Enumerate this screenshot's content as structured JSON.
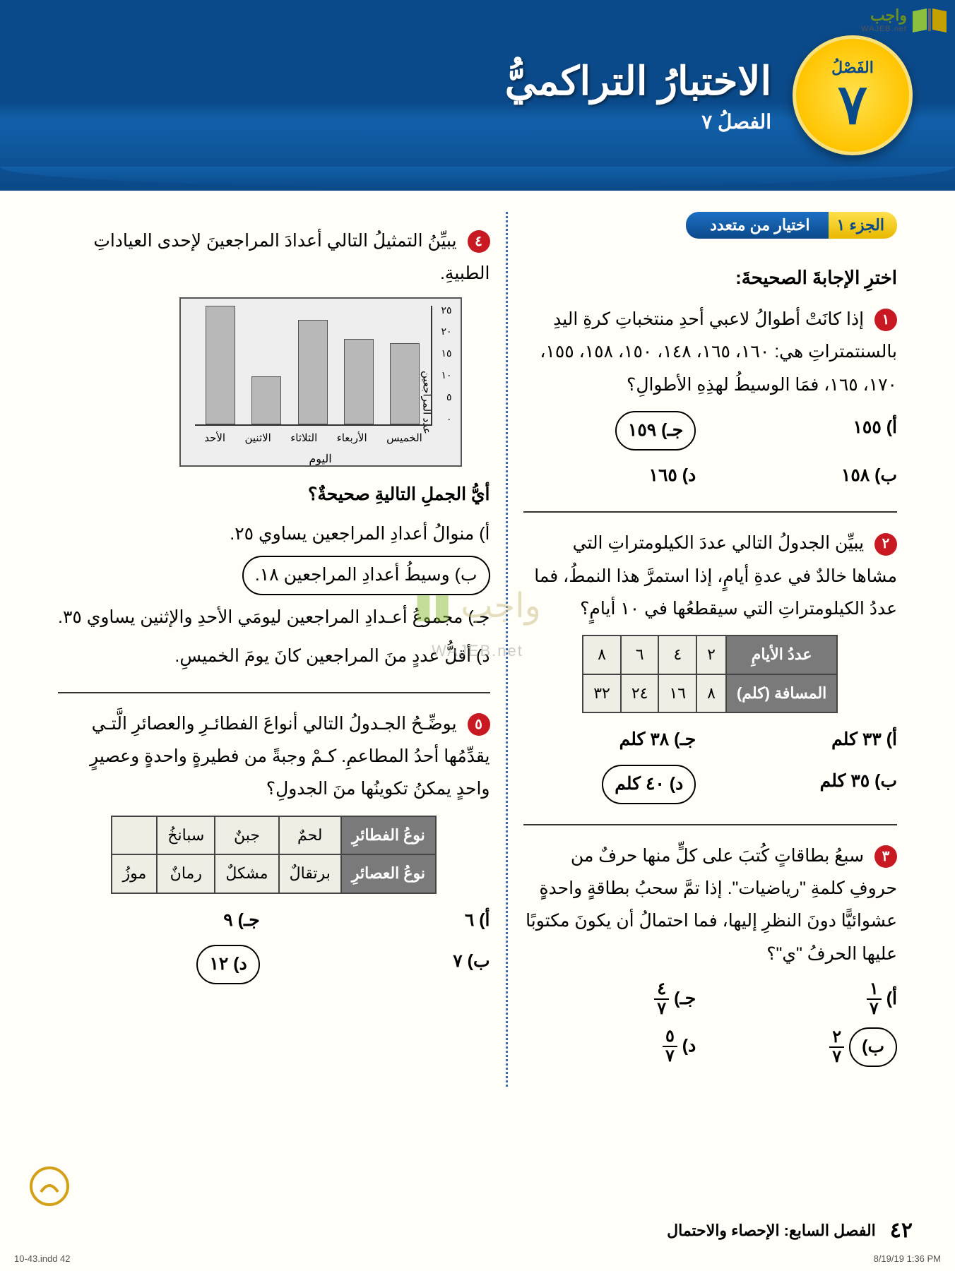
{
  "logo": {
    "brand": "واجب",
    "sub": "WAJEB.net"
  },
  "header": {
    "chapter_label": "الفَصْلُ",
    "chapter_number": "٧",
    "title": "الاختبارُ التراكميُّ",
    "subtitle": "الفصلُ ٧"
  },
  "section_pill": {
    "part": "الجزء ١",
    "label": "اختيار من متعدد"
  },
  "instruction": "اخترِ الإجابةَ الصحيحةَ:",
  "colors": {
    "header_bg": "#0b4a8a",
    "badge_bg": "#ffc400",
    "qnum_bg": "#c81922",
    "pill_blue": "#0b4a8a",
    "table_header": "#7a7a7a",
    "bar_fill": "#b8b8b8",
    "chart_bg": "#eeeeee"
  },
  "q1": {
    "num": "١",
    "text": "إذا كانَتْ أطوالُ لاعبي أحدِ منتخباتِ كرةِ اليدِ بالسنتمتراتِ هي: ١٦٠، ١٦٥، ١٤٨، ١٥٠، ١٥٨، ١٥٥، ١٧٠، ١٦٥، فمَا الوسيطُ لهذِهِ الأطوالِ؟",
    "options": {
      "a": "أ) ١٥٥",
      "b": "ب) ١٥٨",
      "c": "جـ) ١٥٩",
      "d": "د) ١٦٥"
    },
    "correct": "c"
  },
  "q2": {
    "num": "٢",
    "text": "يبيِّن الجدولُ التالي عددَ الكيلومتراتِ التي مشاها خالدٌ في عدةِ أيامٍ، إذا استمرَّ هذا النمطُ، فما عددُ الكيلومتراتِ التي سيقطعُها في ١٠ أيامٍ؟",
    "table": {
      "row1_header": "عددُ الأيامِ",
      "row1": [
        "٢",
        "٤",
        "٦",
        "٨"
      ],
      "row2_header": "المسافة (كلم)",
      "row2": [
        "٨",
        "١٦",
        "٢٤",
        "٣٢"
      ]
    },
    "options": {
      "a": "أ) ٣٣ كلم",
      "b": "ب) ٣٥ كلم",
      "c": "جـ) ٣٨ كلم",
      "d": "د) ٤٠ كلم"
    },
    "correct": "d"
  },
  "q3": {
    "num": "٣",
    "text": "سبعُ بطاقاتٍ كُتبَ على كلٍّ منها حرفٌ من حروفِ كلمةِ \"رياضيات\". إذا تمَّ سحبُ بطاقةٍ واحدةٍ عشوائيًّا دونَ النظرِ إليها، فما احتمالُ أن يكونَ مكتوبًا عليها الحرفُ \"ي\"؟",
    "options": {
      "a_label": "أ)",
      "a_num": "١",
      "a_den": "٧",
      "b_label": "ب)",
      "b_num": "٢",
      "b_den": "٧",
      "c_label": "جـ)",
      "c_num": "٤",
      "c_den": "٧",
      "d_label": "د)",
      "d_num": "٥",
      "d_den": "٧"
    },
    "correct": "b"
  },
  "q4": {
    "num": "٤",
    "text": "يبيِّنُ التمثيلُ التالي أعدادَ المراجعينَ لإحدى العياداتِ الطبيةِ.",
    "chart": {
      "ylabel": "عدد المراجعين",
      "xlabel": "اليوم",
      "ymax": 25,
      "ytick_step": 5,
      "yticks": [
        "٢٥",
        "٢٠",
        "١٥",
        "١٠",
        "٥",
        "٠"
      ],
      "categories": [
        "الخميس",
        "الأربعاء",
        "الثلاثاء",
        "الاثنين",
        "الأحد"
      ],
      "values": [
        17,
        18,
        22,
        10,
        25
      ],
      "bar_color": "#b8b8b8",
      "bg": "#eeeeee"
    },
    "after": "أيُّ الجملِ التاليةِ صحيحةٌ؟",
    "options": {
      "a": "أ) منوالُ أعدادِ المراجعين يساوي ٢٥.",
      "b": "ب) وسيطُ أعدادِ المراجعين ١٨.",
      "c": "جـ) مجموعُ أعـدادِ المراجعين ليومَي الأحدِ والإثنين يساوي ٣٥.",
      "d": "د) أقلُّ عددٍ منَ المراجعين كانَ يومَ الخميسِ."
    },
    "correct": "b"
  },
  "q5": {
    "num": "٥",
    "text": "يوضِّـحُ الجـدولُ التالي أنواعَ الفطائـرِ والعصائرِ الَّتـي يقدِّمُها أحدُ المطاعمِ. كـمْ وجبةً من فطيرةٍ واحدةٍ وعصيرٍ واحدٍ يمكنُ تكوينُها منَ الجدولِ؟",
    "table": {
      "r1h": "نوعُ الفطائرِ",
      "r1": [
        "لحمٌ",
        "جبنٌ",
        "سبانخُ"
      ],
      "r2h": "نوعُ العصائرِ",
      "r2": [
        "برتقالٌ",
        "مشكلٌ",
        "رمانٌ",
        "موزُ"
      ]
    },
    "options": {
      "a": "أ) ٦",
      "b": "ب) ٧",
      "c": "جـ) ٩",
      "d": "د) ١٢"
    },
    "correct": "d"
  },
  "footer": {
    "page": "٤٢",
    "chapter_line": "الفصل السابع:   الإحصاء والاحتمال",
    "indd": "10-43.indd   42",
    "timestamp": "8/19/19   1:36 PM"
  },
  "wm": {
    "big": "واجب",
    "sub": "WAJEB.net"
  }
}
